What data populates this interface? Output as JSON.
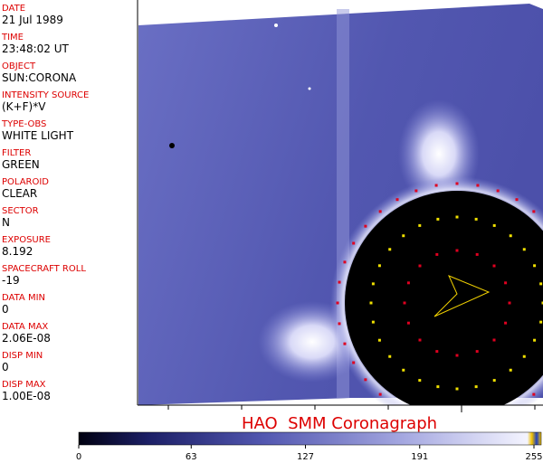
{
  "metadata": [
    {
      "label": "DATE",
      "value": "21 Jul 1989"
    },
    {
      "label": "TIME",
      "value": "23:48:02 UT"
    },
    {
      "label": "OBJECT",
      "value": "SUN:CORONA"
    },
    {
      "label": "INTENSITY SOURCE",
      "value": "(K+F)*V"
    },
    {
      "label": "TYPE-OBS",
      "value": "WHITE LIGHT"
    },
    {
      "label": "FILTER",
      "value": "GREEN"
    },
    {
      "label": "POLAROID",
      "value": "CLEAR"
    },
    {
      "label": "SECTOR",
      "value": "N"
    },
    {
      "label": "EXPOSURE",
      "value": "8.192"
    },
    {
      "label": "SPACECRAFT ROLL",
      "value": "-19"
    },
    {
      "label": "DATA MIN",
      "value": "0"
    },
    {
      "label": "DATA MAX",
      "value": "2.06E-08"
    },
    {
      "label": "DISP MIN",
      "value": "0"
    },
    {
      "label": "DISP MAX",
      "value": "1.00E-08"
    }
  ],
  "title": "HAO  SMM Coronagraph",
  "colorbar": {
    "ticks": [
      0,
      63,
      127,
      191,
      255
    ]
  }
}
